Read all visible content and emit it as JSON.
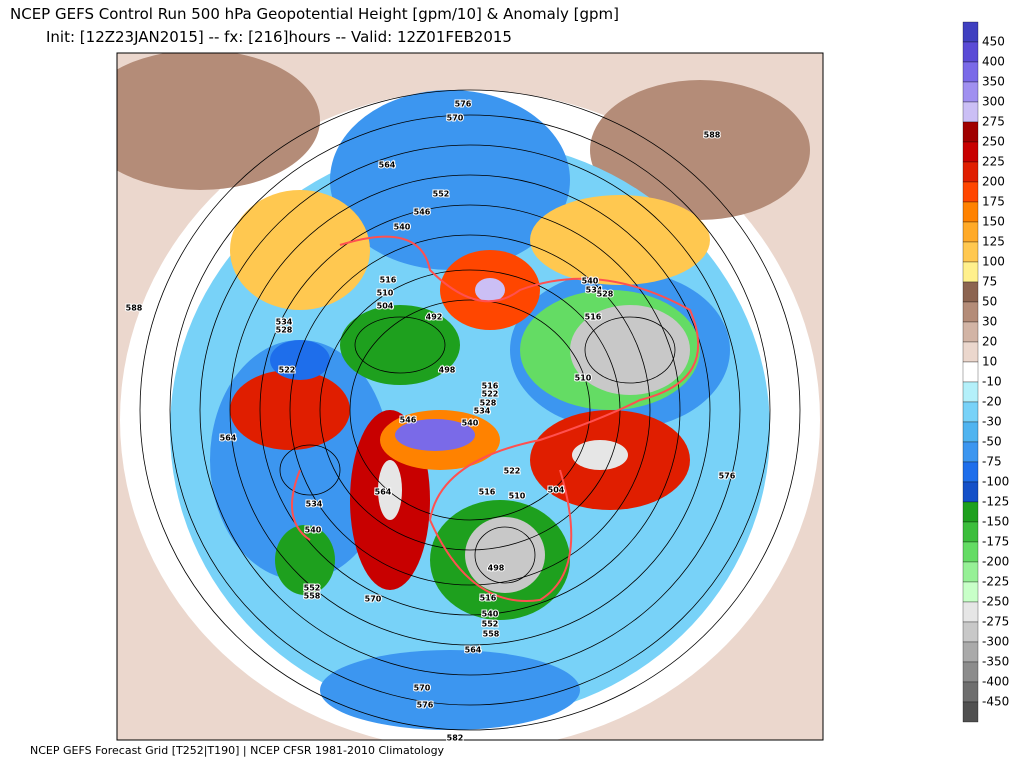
{
  "title": "NCEP GEFS Control Run 500 hPa Geopotential Height [gpm/10] & Anomaly [gpm]",
  "subtitle": "Init: [12Z23JAN2015] -- fx: [216]hours -- Valid: 12Z01FEB2015",
  "footer": "NCEP GEFS Forecast Grid [T252|T190] | NCEP CFSR 1981-2010 Climatology",
  "colorbar": {
    "colors": [
      "#4040c0",
      "#5a4bd6",
      "#7a6ae8",
      "#a090f0",
      "#cbbff5",
      "#a00000",
      "#c80000",
      "#e01e00",
      "#ff4600",
      "#ff8200",
      "#ffaa28",
      "#ffc850",
      "#fff08c",
      "#8c6450",
      "#b48c78",
      "#d2b4a5",
      "#ebd7cd",
      "#ffffff",
      "#b4f0fa",
      "#78d2f8",
      "#50b4f0",
      "#3c96f0",
      "#1e6eeb",
      "#1450c8",
      "#1ea01e",
      "#3cbe3c",
      "#64dc64",
      "#96f096",
      "#c8ffc8",
      "#e6e6e6",
      "#c8c8c8",
      "#aaaaaa",
      "#8c8c8c",
      "#6e6e6e",
      "#505050"
    ],
    "labels": [
      450,
      400,
      350,
      300,
      275,
      250,
      225,
      200,
      175,
      150,
      125,
      100,
      75,
      50,
      30,
      20,
      10,
      -10,
      -20,
      -30,
      -50,
      -75,
      -100,
      -125,
      -150,
      -175,
      -200,
      -225,
      -250,
      -275,
      -300,
      -350,
      -400,
      -450
    ]
  },
  "contour_labels": [
    576,
    570,
    564,
    552,
    546,
    540,
    588,
    516,
    510,
    504,
    492,
    498,
    534,
    528,
    522,
    564,
    546,
    540,
    534,
    528,
    522,
    516,
    522,
    516,
    510,
    504,
    564,
    534,
    540,
    552,
    558,
    570,
    498,
    516,
    540,
    552,
    558,
    564,
    570,
    576,
    582,
    576,
    588,
    540,
    534,
    528,
    516,
    510
  ]
}
